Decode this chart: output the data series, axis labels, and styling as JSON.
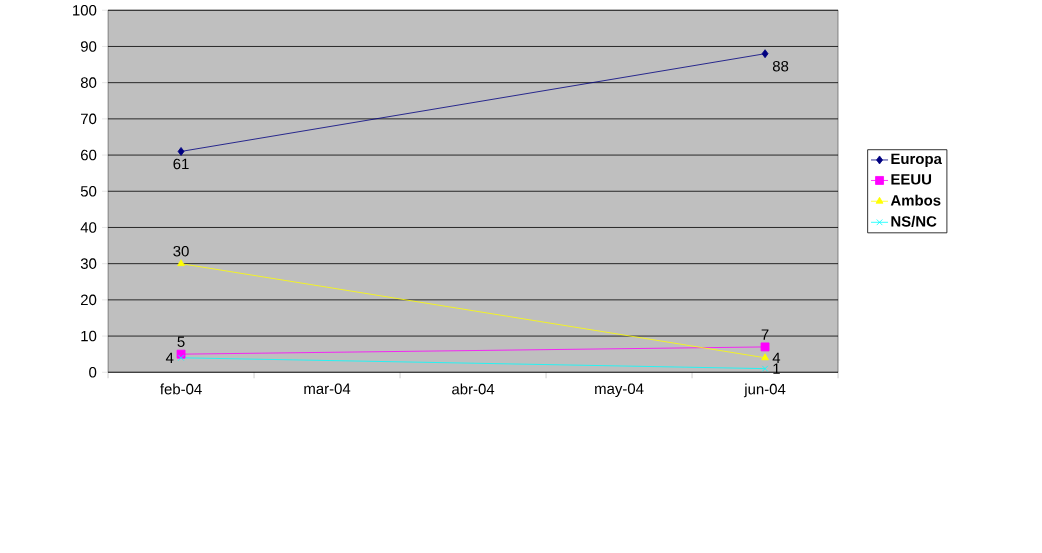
{
  "chart_data": {
    "type": "line",
    "categories": [
      "feb-04",
      "mar-04",
      "abr-04",
      "may-04",
      "jun-04"
    ],
    "series": [
      {
        "name": "Europa",
        "color": "#000080",
        "marker": "diamond",
        "values": [
          61,
          null,
          null,
          null,
          88
        ]
      },
      {
        "name": "EEUU",
        "color": "#ff00ff",
        "marker": "square",
        "values": [
          5,
          null,
          null,
          null,
          7
        ]
      },
      {
        "name": "Ambos",
        "color": "#ffff00",
        "marker": "triangle",
        "values": [
          30,
          null,
          null,
          null,
          4
        ]
      },
      {
        "name": "NS/NC",
        "color": "#00ffff",
        "marker": "cross",
        "values": [
          4,
          null,
          null,
          null,
          1
        ]
      }
    ],
    "ylim": [
      0,
      100
    ],
    "yticks": [
      0,
      10,
      20,
      30,
      40,
      50,
      60,
      70,
      80,
      90,
      100
    ],
    "grid": "y",
    "legend": "right",
    "data_labels": true
  }
}
